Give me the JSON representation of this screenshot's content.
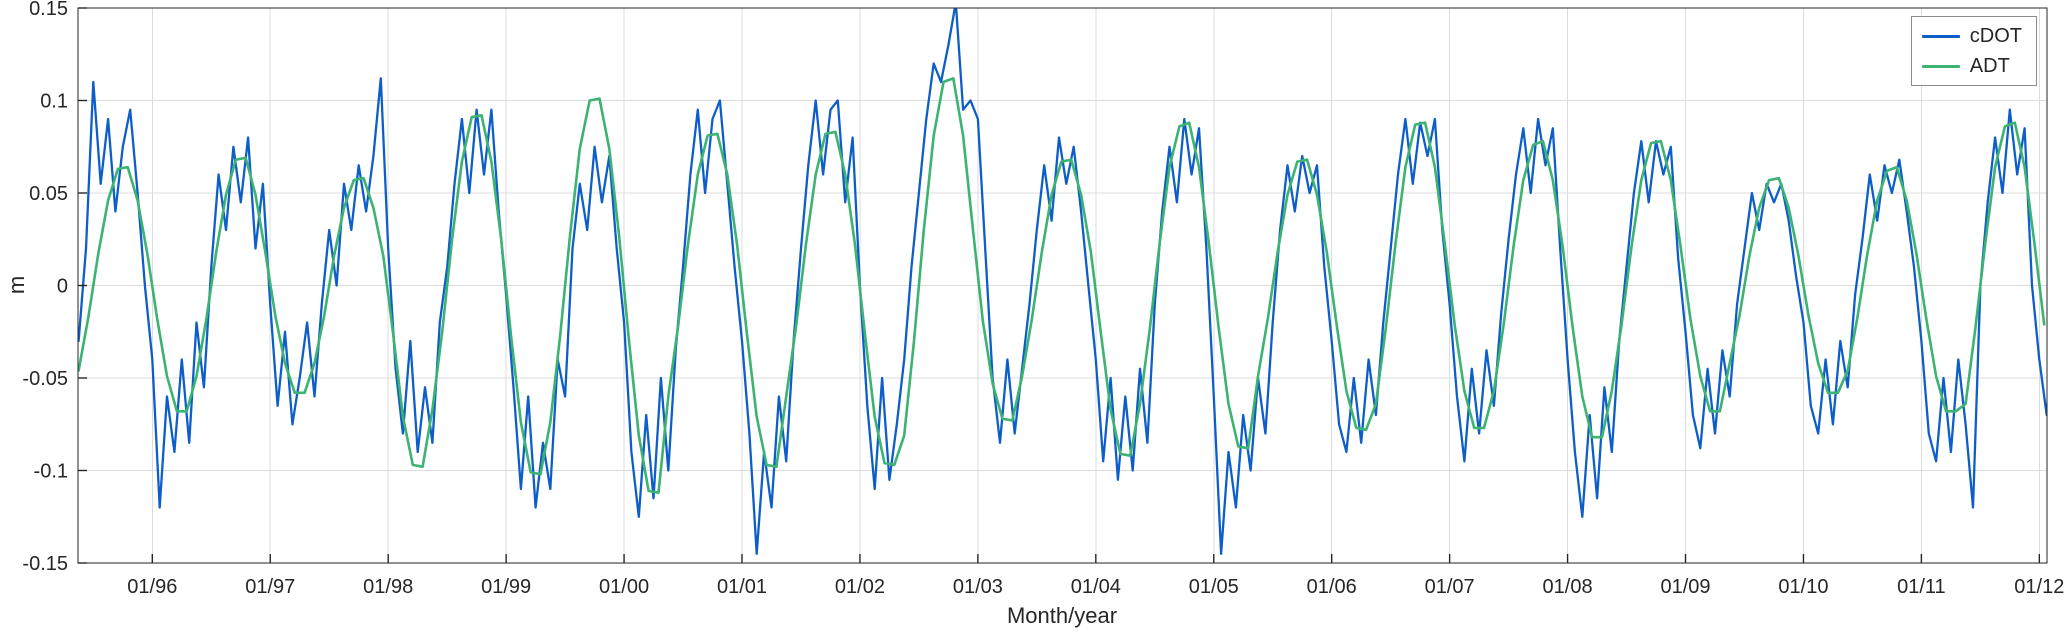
{
  "chart_data": {
    "type": "line",
    "title": "",
    "xlabel": "Month/year",
    "ylabel": "m",
    "xlim": [
      1995.37,
      2012.065
    ],
    "ylim": [
      -0.15,
      0.15
    ],
    "grid": true,
    "grid_color": "#dcdcdc",
    "axis_color": "#262626",
    "xticks": [
      1996,
      1997,
      1998,
      1999,
      2000,
      2001,
      2002,
      2003,
      2004,
      2005,
      2006,
      2007,
      2008,
      2009,
      2010,
      2011,
      2012
    ],
    "xtick_labels": [
      "01/96",
      "01/97",
      "01/98",
      "01/99",
      "01/00",
      "01/01",
      "01/02",
      "01/03",
      "01/04",
      "01/05",
      "01/06",
      "01/07",
      "01/08",
      "01/09",
      "01/10",
      "01/11",
      "01/12"
    ],
    "yticks": [
      -0.15,
      -0.1,
      -0.05,
      0,
      0.05,
      0.1,
      0.15
    ],
    "ytick_labels": [
      "-0.15",
      "-0.1",
      "-0.05",
      "0",
      "0.05",
      "0.1",
      "0.15"
    ],
    "legend": {
      "position": "top-right",
      "entries": [
        {
          "label": "cDOT",
          "color": "#0e5ec9"
        },
        {
          "label": "ADT",
          "color": "#3cb371"
        }
      ]
    },
    "series": [
      {
        "name": "cDOT",
        "color": "#0e5ec9",
        "line_width": 2.3,
        "x_start": 1995.375,
        "x_step": 0.0625,
        "values": [
          -0.03,
          0.02,
          0.11,
          0.055,
          0.09,
          0.04,
          0.075,
          0.095,
          0.05,
          0.0,
          -0.04,
          -0.12,
          -0.06,
          -0.09,
          -0.04,
          -0.085,
          -0.02,
          -0.055,
          0.01,
          0.06,
          0.03,
          0.075,
          0.045,
          0.08,
          0.02,
          0.055,
          -0.01,
          -0.065,
          -0.025,
          -0.075,
          -0.05,
          -0.02,
          -0.06,
          -0.01,
          0.03,
          0.0,
          0.055,
          0.03,
          0.065,
          0.04,
          0.07,
          0.112,
          0.02,
          -0.045,
          -0.08,
          -0.03,
          -0.09,
          -0.055,
          -0.085,
          -0.02,
          0.01,
          0.055,
          0.09,
          0.05,
          0.095,
          0.06,
          0.095,
          0.04,
          -0.005,
          -0.055,
          -0.11,
          -0.06,
          -0.12,
          -0.085,
          -0.11,
          -0.04,
          -0.06,
          0.02,
          0.055,
          0.03,
          0.075,
          0.045,
          0.07,
          0.02,
          -0.02,
          -0.09,
          -0.125,
          -0.07,
          -0.115,
          -0.05,
          -0.1,
          -0.035,
          0.01,
          0.06,
          0.095,
          0.05,
          0.09,
          0.1,
          0.055,
          0.01,
          -0.03,
          -0.08,
          -0.145,
          -0.09,
          -0.12,
          -0.06,
          -0.095,
          -0.03,
          0.02,
          0.065,
          0.1,
          0.06,
          0.095,
          0.1,
          0.045,
          0.08,
          0.0,
          -0.065,
          -0.11,
          -0.05,
          -0.105,
          -0.075,
          -0.04,
          0.01,
          0.05,
          0.09,
          0.12,
          0.11,
          0.13,
          0.153,
          0.095,
          0.1,
          0.09,
          0.02,
          -0.05,
          -0.085,
          -0.04,
          -0.08,
          -0.045,
          -0.01,
          0.03,
          0.065,
          0.035,
          0.08,
          0.055,
          0.075,
          0.04,
          0.0,
          -0.04,
          -0.095,
          -0.05,
          -0.105,
          -0.06,
          -0.1,
          -0.045,
          -0.085,
          -0.01,
          0.04,
          0.075,
          0.045,
          0.09,
          0.06,
          0.085,
          0.02,
          -0.06,
          -0.145,
          -0.09,
          -0.12,
          -0.07,
          -0.1,
          -0.05,
          -0.08,
          -0.02,
          0.03,
          0.065,
          0.04,
          0.07,
          0.05,
          0.065,
          0.01,
          -0.03,
          -0.075,
          -0.09,
          -0.05,
          -0.085,
          -0.04,
          -0.07,
          -0.02,
          0.02,
          0.06,
          0.09,
          0.055,
          0.088,
          0.07,
          0.09,
          0.03,
          -0.01,
          -0.06,
          -0.095,
          -0.045,
          -0.08,
          -0.035,
          -0.065,
          -0.015,
          0.025,
          0.06,
          0.085,
          0.05,
          0.09,
          0.065,
          0.085,
          0.02,
          -0.04,
          -0.09,
          -0.125,
          -0.07,
          -0.115,
          -0.055,
          -0.09,
          -0.03,
          0.01,
          0.05,
          0.078,
          0.045,
          0.078,
          0.06,
          0.075,
          0.015,
          -0.025,
          -0.07,
          -0.088,
          -0.045,
          -0.08,
          -0.035,
          -0.06,
          -0.01,
          0.02,
          0.05,
          0.03,
          0.055,
          0.045,
          0.055,
          0.035,
          0.005,
          -0.02,
          -0.065,
          -0.08,
          -0.04,
          -0.075,
          -0.03,
          -0.055,
          -0.005,
          0.025,
          0.06,
          0.035,
          0.065,
          0.05,
          0.068,
          0.04,
          0.01,
          -0.03,
          -0.08,
          -0.095,
          -0.05,
          -0.09,
          -0.04,
          -0.075,
          -0.12,
          0.0,
          0.045,
          0.08,
          0.05,
          0.095,
          0.06,
          0.085,
          0.0,
          -0.04,
          -0.07
        ]
      },
      {
        "name": "ADT",
        "color": "#3cb371",
        "line_width": 2.6,
        "x_start": 1995.375,
        "x_step": 0.0833333,
        "values": [
          -0.046,
          -0.017,
          0.017,
          0.046,
          0.063,
          0.064,
          0.046,
          0.017,
          -0.018,
          -0.049,
          -0.068,
          -0.068,
          -0.049,
          -0.018,
          0.018,
          0.049,
          0.068,
          0.069,
          0.049,
          0.018,
          -0.016,
          -0.042,
          -0.058,
          -0.058,
          -0.042,
          -0.016,
          0.016,
          0.042,
          0.057,
          0.058,
          0.042,
          0.016,
          -0.026,
          -0.071,
          -0.097,
          -0.098,
          -0.067,
          -0.025,
          0.025,
          0.067,
          0.091,
          0.092,
          0.067,
          0.025,
          -0.027,
          -0.074,
          -0.101,
          -0.102,
          -0.074,
          -0.027,
          0.027,
          0.074,
          0.1,
          0.101,
          0.074,
          0.027,
          -0.03,
          -0.081,
          -0.111,
          -0.112,
          -0.06,
          -0.022,
          0.022,
          0.06,
          0.081,
          0.082,
          0.06,
          0.022,
          -0.026,
          -0.071,
          -0.097,
          -0.098,
          -0.06,
          -0.022,
          0.022,
          0.06,
          0.082,
          0.083,
          0.06,
          0.022,
          -0.026,
          -0.071,
          -0.096,
          -0.097,
          -0.081,
          -0.03,
          0.03,
          0.081,
          0.11,
          0.112,
          0.081,
          0.03,
          -0.019,
          -0.053,
          -0.072,
          -0.073,
          -0.049,
          -0.018,
          0.018,
          0.049,
          0.067,
          0.068,
          0.049,
          0.018,
          -0.025,
          -0.067,
          -0.091,
          -0.092,
          -0.064,
          -0.023,
          0.023,
          0.064,
          0.086,
          0.088,
          0.064,
          0.023,
          -0.023,
          -0.064,
          -0.087,
          -0.088,
          -0.049,
          -0.018,
          0.018,
          0.049,
          0.067,
          0.068,
          0.049,
          0.018,
          -0.021,
          -0.057,
          -0.077,
          -0.078,
          -0.064,
          -0.023,
          0.023,
          0.064,
          0.087,
          0.088,
          0.064,
          0.023,
          -0.021,
          -0.057,
          -0.077,
          -0.077,
          -0.057,
          -0.021,
          0.021,
          0.057,
          0.076,
          0.078,
          0.057,
          0.021,
          -0.022,
          -0.06,
          -0.082,
          -0.082,
          -0.057,
          -0.021,
          0.021,
          0.057,
          0.077,
          0.078,
          0.057,
          0.021,
          -0.018,
          -0.049,
          -0.068,
          -0.068,
          -0.042,
          -0.016,
          0.016,
          0.042,
          0.057,
          0.058,
          0.042,
          0.016,
          -0.016,
          -0.042,
          -0.058,
          -0.058,
          -0.046,
          -0.017,
          0.017,
          0.046,
          0.062,
          0.064,
          0.046,
          0.017,
          -0.018,
          -0.049,
          -0.068,
          -0.068,
          -0.064,
          -0.023,
          0.023,
          0.064,
          0.086,
          0.088,
          0.064,
          0.023,
          -0.021
        ]
      }
    ]
  }
}
